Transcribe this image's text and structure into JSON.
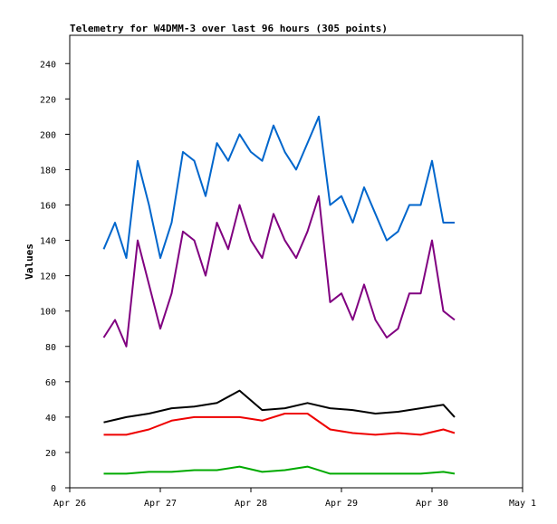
{
  "chart_data": {
    "type": "line",
    "title": "Telemetry for W4DMM-3 over last 96 hours (305 points)",
    "ylabel": "Values",
    "xlabel": "",
    "x_ticks": [
      "Apr 26",
      "Apr 27",
      "Apr 28",
      "Apr 29",
      "Apr 30",
      "May 1"
    ],
    "ylim": [
      0,
      256
    ],
    "y_ticks": [
      0,
      20,
      40,
      60,
      80,
      100,
      120,
      140,
      160,
      180,
      200,
      220,
      240
    ],
    "xlim": [
      "Apr 26 00:00",
      "May 1 00:00"
    ],
    "grid": false,
    "series": [
      {
        "color": "#0066cc",
        "x": [
          "Apr 26 09:00",
          "Apr 26 12:00",
          "Apr 26 15:00",
          "Apr 26 18:00",
          "Apr 26 21:00",
          "Apr 27 00:00",
          "Apr 27 03:00",
          "Apr 27 06:00",
          "Apr 27 09:00",
          "Apr 27 12:00",
          "Apr 27 15:00",
          "Apr 27 18:00",
          "Apr 27 21:00",
          "Apr 28 00:00",
          "Apr 28 03:00",
          "Apr 28 06:00",
          "Apr 28 09:00",
          "Apr 28 12:00",
          "Apr 28 15:00",
          "Apr 28 18:00",
          "Apr 28 21:00",
          "Apr 29 00:00",
          "Apr 29 03:00",
          "Apr 29 06:00",
          "Apr 29 09:00",
          "Apr 29 12:00",
          "Apr 29 15:00",
          "Apr 29 18:00",
          "Apr 29 21:00",
          "Apr 30 00:00",
          "Apr 30 03:00",
          "Apr 30 06:00"
        ],
        "values": [
          135,
          150,
          130,
          185,
          160,
          130,
          150,
          190,
          185,
          165,
          195,
          185,
          200,
          190,
          185,
          205,
          190,
          180,
          195,
          210,
          160,
          165,
          150,
          170,
          155,
          140,
          145,
          160,
          160,
          185,
          150,
          150
        ]
      },
      {
        "color": "#800080",
        "x": [
          "Apr 26 09:00",
          "Apr 26 12:00",
          "Apr 26 15:00",
          "Apr 26 18:00",
          "Apr 26 21:00",
          "Apr 27 00:00",
          "Apr 27 03:00",
          "Apr 27 06:00",
          "Apr 27 09:00",
          "Apr 27 12:00",
          "Apr 27 15:00",
          "Apr 27 18:00",
          "Apr 27 21:00",
          "Apr 28 00:00",
          "Apr 28 03:00",
          "Apr 28 06:00",
          "Apr 28 09:00",
          "Apr 28 12:00",
          "Apr 28 15:00",
          "Apr 28 18:00",
          "Apr 28 21:00",
          "Apr 29 00:00",
          "Apr 29 03:00",
          "Apr 29 06:00",
          "Apr 29 09:00",
          "Apr 29 12:00",
          "Apr 29 15:00",
          "Apr 29 18:00",
          "Apr 29 21:00",
          "Apr 30 00:00",
          "Apr 30 03:00",
          "Apr 30 06:00"
        ],
        "values": [
          85,
          95,
          80,
          140,
          115,
          90,
          110,
          145,
          140,
          120,
          150,
          135,
          160,
          140,
          130,
          155,
          140,
          130,
          145,
          165,
          105,
          110,
          95,
          115,
          95,
          85,
          90,
          110,
          110,
          140,
          100,
          95
        ]
      },
      {
        "color": "#000000",
        "x": [
          "Apr 26 09:00",
          "Apr 26 15:00",
          "Apr 26 21:00",
          "Apr 27 03:00",
          "Apr 27 09:00",
          "Apr 27 15:00",
          "Apr 27 21:00",
          "Apr 28 03:00",
          "Apr 28 09:00",
          "Apr 28 15:00",
          "Apr 28 21:00",
          "Apr 29 03:00",
          "Apr 29 09:00",
          "Apr 29 15:00",
          "Apr 29 21:00",
          "Apr 30 03:00",
          "Apr 30 06:00"
        ],
        "values": [
          37,
          40,
          42,
          45,
          46,
          48,
          55,
          44,
          45,
          48,
          45,
          44,
          42,
          43,
          45,
          47,
          40
        ]
      },
      {
        "color": "#ee0000",
        "x": [
          "Apr 26 09:00",
          "Apr 26 15:00",
          "Apr 26 21:00",
          "Apr 27 03:00",
          "Apr 27 09:00",
          "Apr 27 15:00",
          "Apr 27 21:00",
          "Apr 28 03:00",
          "Apr 28 09:00",
          "Apr 28 15:00",
          "Apr 28 21:00",
          "Apr 29 03:00",
          "Apr 29 09:00",
          "Apr 29 15:00",
          "Apr 29 21:00",
          "Apr 30 03:00",
          "Apr 30 06:00"
        ],
        "values": [
          30,
          30,
          33,
          38,
          40,
          40,
          40,
          38,
          42,
          42,
          33,
          31,
          30,
          31,
          30,
          33,
          31
        ]
      },
      {
        "color": "#00aa00",
        "x": [
          "Apr 26 09:00",
          "Apr 26 15:00",
          "Apr 26 21:00",
          "Apr 27 03:00",
          "Apr 27 09:00",
          "Apr 27 15:00",
          "Apr 27 21:00",
          "Apr 28 03:00",
          "Apr 28 09:00",
          "Apr 28 15:00",
          "Apr 28 21:00",
          "Apr 29 03:00",
          "Apr 29 09:00",
          "Apr 29 15:00",
          "Apr 29 21:00",
          "Apr 30 03:00",
          "Apr 30 06:00"
        ],
        "values": [
          8,
          8,
          9,
          9,
          10,
          10,
          12,
          9,
          10,
          12,
          8,
          8,
          8,
          8,
          8,
          9,
          8
        ]
      }
    ]
  }
}
